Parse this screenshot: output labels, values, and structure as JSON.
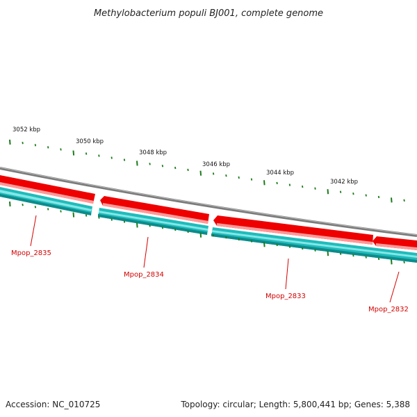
{
  "title": "Methylobacterium populi BJ001, complete genome",
  "footer": {
    "accession": "Accession: NC_010725",
    "summary": "Topology: circular; Length: 5,800,441 bp; Genes: 5,388"
  },
  "kbp_labels": [
    "3052 kbp",
    "3050 kbp",
    "3048 kbp",
    "3046 kbp",
    "3044 kbp",
    "3042 kbp"
  ],
  "genes": [
    {
      "name": "Mpop_2835",
      "strand": "both"
    },
    {
      "name": "Mpop_2834",
      "strand": "both"
    },
    {
      "name": "Mpop_2833",
      "strand": "both"
    },
    {
      "name": "Mpop_2832",
      "strand": "both"
    }
  ],
  "colors": {
    "backbone": "#808080",
    "forward_cds": "#ee0000",
    "reverse_cds": "#20c0c0",
    "ticks": "#1a7a1a",
    "gene_label": "#d40000"
  }
}
